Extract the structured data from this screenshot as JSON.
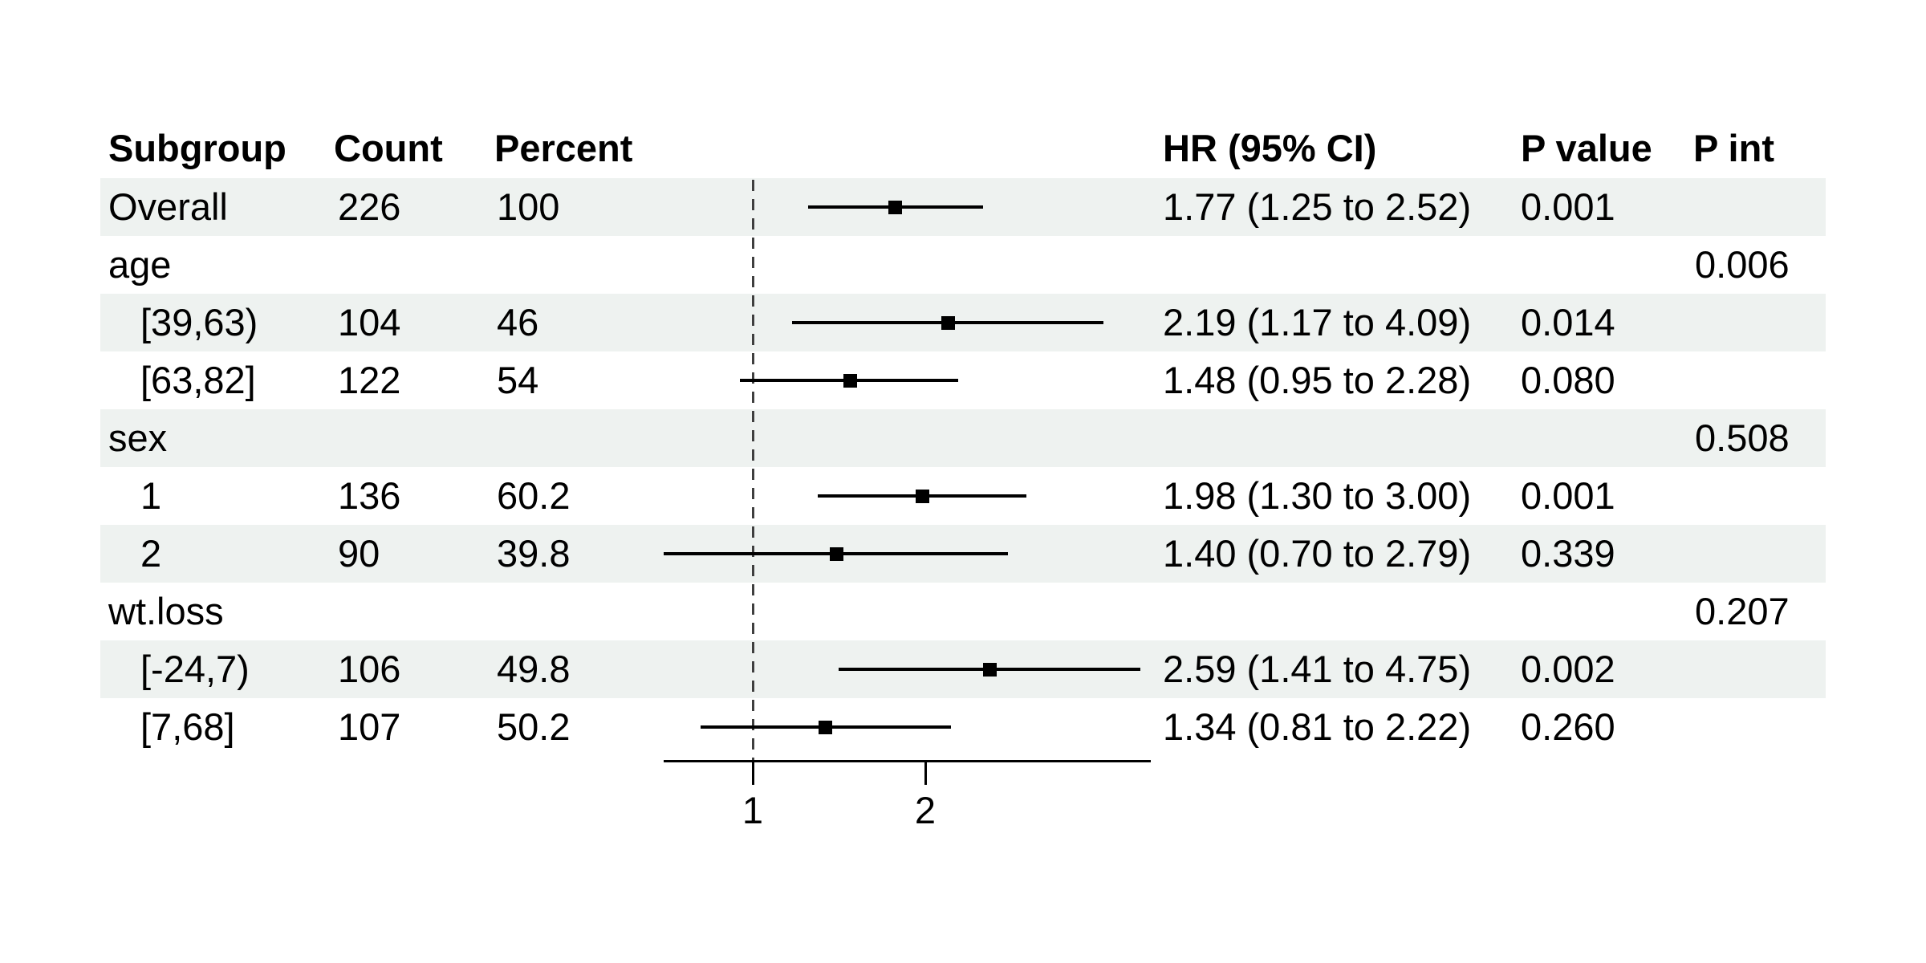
{
  "figure": {
    "kind": "forest plot",
    "background": "#ffffff"
  },
  "colors": {
    "stripe": "#eef2f0",
    "text": "#000000",
    "ci_line": "#000000",
    "marker": "#000000",
    "refline": "#3f3f3f",
    "axis": "#000000"
  },
  "table": {
    "headers": [
      "Subgroup",
      "Count",
      "Percent",
      "HR (95% CI)",
      "P value",
      "P int"
    ],
    "rows": [
      {
        "subgroup": "Overall",
        "indent": false,
        "count": "226",
        "percent": "100",
        "hr_ci": "1.77 (1.25 to 2.52)",
        "p_value": "0.001",
        "p_int": "",
        "striped": true
      },
      {
        "subgroup": "age",
        "indent": false,
        "count": "",
        "percent": "",
        "hr_ci": "",
        "p_value": "",
        "p_int": "0.006",
        "striped": false
      },
      {
        "subgroup": "[39,63)",
        "indent": true,
        "count": "104",
        "percent": "46",
        "hr_ci": "2.19 (1.17 to 4.09)",
        "p_value": "0.014",
        "p_int": "",
        "striped": true
      },
      {
        "subgroup": "[63,82]",
        "indent": true,
        "count": "122",
        "percent": "54",
        "hr_ci": "1.48 (0.95 to 2.28)",
        "p_value": "0.080",
        "p_int": "",
        "striped": false
      },
      {
        "subgroup": "sex",
        "indent": false,
        "count": "",
        "percent": "",
        "hr_ci": "",
        "p_value": "",
        "p_int": "0.508",
        "striped": true
      },
      {
        "subgroup": "1",
        "indent": true,
        "count": "136",
        "percent": "60.2",
        "hr_ci": "1.98 (1.30 to 3.00)",
        "p_value": "0.001",
        "p_int": "",
        "striped": false
      },
      {
        "subgroup": "2",
        "indent": true,
        "count": "90",
        "percent": "39.8",
        "hr_ci": "1.40 (0.70 to 2.79)",
        "p_value": "0.339",
        "p_int": "",
        "striped": true
      },
      {
        "subgroup": "wt.loss",
        "indent": false,
        "count": "",
        "percent": "",
        "hr_ci": "",
        "p_value": "",
        "p_int": "0.207",
        "striped": false
      },
      {
        "subgroup": "[-24,7)",
        "indent": true,
        "count": "106",
        "percent": "49.8",
        "hr_ci": "2.59 (1.41 to 4.75)",
        "p_value": "0.002",
        "p_int": "",
        "striped": true
      },
      {
        "subgroup": "[7,68]",
        "indent": true,
        "count": "107",
        "percent": "50.2",
        "hr_ci": "1.34 (0.81 to 2.22)",
        "p_value": "0.260",
        "p_int": "",
        "striped": false
      }
    ]
  },
  "chart_data": {
    "type": "forest",
    "x_scale": "log2",
    "xlim": [
      0.7,
      4.95
    ],
    "refline_value": 1,
    "x_ticks": [
      {
        "value": 1,
        "label": "1"
      },
      {
        "value": 2,
        "label": "2"
      }
    ],
    "series": [
      {
        "name": "Overall",
        "row": 0,
        "est": 1.77,
        "lo": 1.25,
        "hi": 2.52
      },
      {
        "name": "[39,63)",
        "row": 2,
        "est": 2.19,
        "lo": 1.17,
        "hi": 4.09
      },
      {
        "name": "[63,82]",
        "row": 3,
        "est": 1.48,
        "lo": 0.95,
        "hi": 2.28
      },
      {
        "name": "1",
        "row": 5,
        "est": 1.98,
        "lo": 1.3,
        "hi": 3.0
      },
      {
        "name": "2",
        "row": 6,
        "est": 1.4,
        "lo": 0.7,
        "hi": 2.79
      },
      {
        "name": "[-24,7)",
        "row": 8,
        "est": 2.59,
        "lo": 1.41,
        "hi": 4.75
      },
      {
        "name": "[7,68]",
        "row": 9,
        "est": 1.34,
        "lo": 0.81,
        "hi": 2.22
      }
    ],
    "legend": null,
    "grid": false,
    "title": ""
  }
}
